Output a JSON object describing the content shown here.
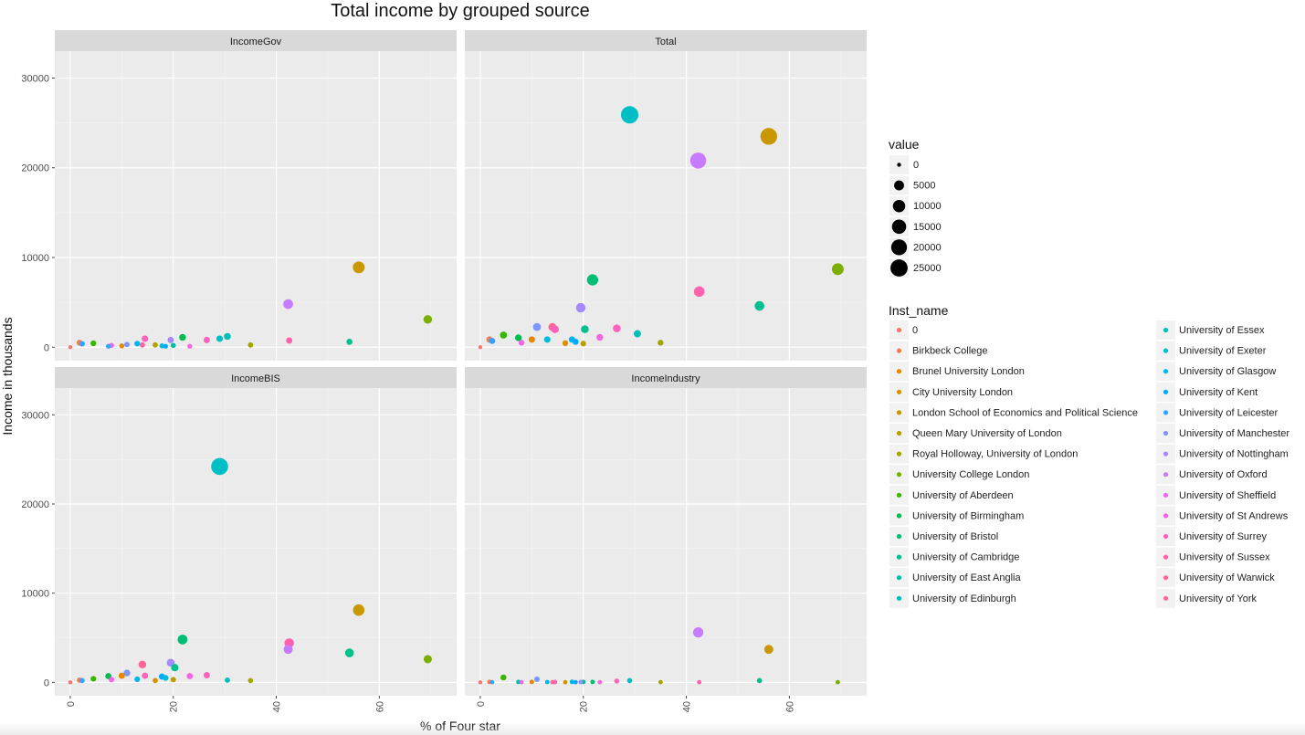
{
  "chart_data": {
    "type": "scatter",
    "title": "Total income by grouped source",
    "xlabel": "% of Four star",
    "ylabel": "Income in thousands",
    "xlim": [
      -3,
      75
    ],
    "ylim": [
      -1500,
      33000
    ],
    "x_ticks": [
      0,
      20,
      40,
      60
    ],
    "x_tick_labels": [
      "0",
      "20",
      "40",
      "60"
    ],
    "y_ticks": [
      0,
      10000,
      20000,
      30000
    ],
    "y_tick_labels": [
      "0",
      "10000",
      "20000",
      "30000"
    ],
    "grid": true,
    "facet_layout": "2x2",
    "size_legend": {
      "title": "value",
      "entries": [
        {
          "label": "0",
          "value": 0
        },
        {
          "label": "5000",
          "value": 5000
        },
        {
          "label": "10000",
          "value": 10000
        },
        {
          "label": "15000",
          "value": 15000
        },
        {
          "label": "20000",
          "value": 20000
        },
        {
          "label": "25000",
          "value": 25000
        }
      ]
    },
    "color_legend": {
      "title": "Inst_name",
      "placement": "right",
      "entries": [
        {
          "label": "0",
          "color": "#F8766D"
        },
        {
          "label": "Birkbeck College",
          "color": "#F07D51"
        },
        {
          "label": "Brunel University London",
          "color": "#E58700"
        },
        {
          "label": "City University London",
          "color": "#D89000"
        },
        {
          "label": "London School of Economics and Political Science",
          "color": "#C99800"
        },
        {
          "label": "Queen Mary University of London",
          "color": "#B79F00"
        },
        {
          "label": "Royal Holloway, University of London",
          "color": "#A3A500"
        },
        {
          "label": "University College London",
          "color": "#7CAE00"
        },
        {
          "label": "University of Aberdeen",
          "color": "#39B600"
        },
        {
          "label": "University of Birmingham",
          "color": "#00BB4E"
        },
        {
          "label": "University of Bristol",
          "color": "#00BF74"
        },
        {
          "label": "University of Cambridge",
          "color": "#00C08B"
        },
        {
          "label": "University of East Anglia",
          "color": "#00C1A3"
        },
        {
          "label": "University of Edinburgh",
          "color": "#00BFB7"
        },
        {
          "label": "University of Essex",
          "color": "#00BFC4"
        },
        {
          "label": "University of Exeter",
          "color": "#00BCD8"
        },
        {
          "label": "University of Glasgow",
          "color": "#00B4EF"
        },
        {
          "label": "University of Kent",
          "color": "#00A9FF"
        },
        {
          "label": "University of Leicester",
          "color": "#35A2FF"
        },
        {
          "label": "University of Manchester",
          "color": "#7F96FF"
        },
        {
          "label": "University of Nottingham",
          "color": "#A58AFF"
        },
        {
          "label": "University of Oxford",
          "color": "#C77CFF"
        },
        {
          "label": "University of Sheffield",
          "color": "#E76BF3"
        },
        {
          "label": "University of St Andrews",
          "color": "#F564E3"
        },
        {
          "label": "University of Surrey",
          "color": "#FF62BC"
        },
        {
          "label": "University of Sussex",
          "color": "#FF61AC"
        },
        {
          "label": "University of Warwick",
          "color": "#FF6599"
        },
        {
          "label": "University of York",
          "color": "#FF6C91"
        }
      ]
    },
    "facets": [
      {
        "name": "IncomeGov",
        "points": [
          {
            "x": 0,
            "y": 0,
            "c": 0
          },
          {
            "x": 1.8,
            "y": 500,
            "c": 1
          },
          {
            "x": 2.3,
            "y": 380,
            "c": 18
          },
          {
            "x": 4.5,
            "y": 430,
            "c": 8
          },
          {
            "x": 7.4,
            "y": 100,
            "c": 18
          },
          {
            "x": 8,
            "y": 200,
            "c": 23
          },
          {
            "x": 10,
            "y": 150,
            "c": 2
          },
          {
            "x": 11,
            "y": 300,
            "c": 19
          },
          {
            "x": 13,
            "y": 400,
            "c": 16
          },
          {
            "x": 14,
            "y": 250,
            "c": 26
          },
          {
            "x": 14.5,
            "y": 950,
            "c": 24
          },
          {
            "x": 16.5,
            "y": 250,
            "c": 5
          },
          {
            "x": 17.8,
            "y": 150,
            "c": 15
          },
          {
            "x": 18.5,
            "y": 100,
            "c": 17
          },
          {
            "x": 19.5,
            "y": 800,
            "c": 20
          },
          {
            "x": 20,
            "y": 200,
            "c": 12
          },
          {
            "x": 21.8,
            "y": 1100,
            "c": 9
          },
          {
            "x": 23.2,
            "y": 100,
            "c": 23
          },
          {
            "x": 26.5,
            "y": 800,
            "c": 24
          },
          {
            "x": 29,
            "y": 950,
            "c": 14
          },
          {
            "x": 30.5,
            "y": 1200,
            "c": 13
          },
          {
            "x": 35,
            "y": 250,
            "c": 6
          },
          {
            "x": 42.3,
            "y": 4800,
            "c": 21
          },
          {
            "x": 42.5,
            "y": 750,
            "c": 25
          },
          {
            "x": 54.2,
            "y": 600,
            "c": 11
          },
          {
            "x": 56,
            "y": 8900,
            "c": 4
          },
          {
            "x": 69.4,
            "y": 3100,
            "c": 7
          }
        ]
      },
      {
        "name": "Total",
        "points": [
          {
            "x": 0,
            "y": 0,
            "c": 0
          },
          {
            "x": 1.8,
            "y": 850,
            "c": 1
          },
          {
            "x": 2.3,
            "y": 700,
            "c": 18
          },
          {
            "x": 4.5,
            "y": 1350,
            "c": 8
          },
          {
            "x": 7.4,
            "y": 1050,
            "c": 9
          },
          {
            "x": 8,
            "y": 500,
            "c": 23
          },
          {
            "x": 10,
            "y": 850,
            "c": 2
          },
          {
            "x": 11,
            "y": 2250,
            "c": 19
          },
          {
            "x": 13,
            "y": 850,
            "c": 15
          },
          {
            "x": 14,
            "y": 2250,
            "c": 26
          },
          {
            "x": 14.5,
            "y": 2000,
            "c": 24
          },
          {
            "x": 16.5,
            "y": 450,
            "c": 3
          },
          {
            "x": 17.8,
            "y": 850,
            "c": 16
          },
          {
            "x": 18.5,
            "y": 600,
            "c": 17
          },
          {
            "x": 19.5,
            "y": 4400,
            "c": 20
          },
          {
            "x": 20,
            "y": 400,
            "c": 5
          },
          {
            "x": 20.3,
            "y": 2000,
            "c": 11
          },
          {
            "x": 21.8,
            "y": 7500,
            "c": 10
          },
          {
            "x": 23.2,
            "y": 1100,
            "c": 23
          },
          {
            "x": 26.5,
            "y": 2100,
            "c": 24
          },
          {
            "x": 29,
            "y": 25900,
            "c": 14
          },
          {
            "x": 30.5,
            "y": 1500,
            "c": 13
          },
          {
            "x": 35,
            "y": 500,
            "c": 6
          },
          {
            "x": 42.3,
            "y": 20800,
            "c": 21
          },
          {
            "x": 42.5,
            "y": 6200,
            "c": 25
          },
          {
            "x": 54.2,
            "y": 4600,
            "c": 11
          },
          {
            "x": 56,
            "y": 23500,
            "c": 4
          },
          {
            "x": 69.4,
            "y": 8700,
            "c": 7
          }
        ]
      },
      {
        "name": "IncomeBIS",
        "points": [
          {
            "x": 0,
            "y": 0,
            "c": 0
          },
          {
            "x": 1.8,
            "y": 250,
            "c": 1
          },
          {
            "x": 2.3,
            "y": 200,
            "c": 18
          },
          {
            "x": 4.5,
            "y": 400,
            "c": 8
          },
          {
            "x": 7.4,
            "y": 700,
            "c": 9
          },
          {
            "x": 8,
            "y": 300,
            "c": 23
          },
          {
            "x": 10,
            "y": 750,
            "c": 2
          },
          {
            "x": 11,
            "y": 1050,
            "c": 19
          },
          {
            "x": 13,
            "y": 350,
            "c": 16
          },
          {
            "x": 14,
            "y": 2000,
            "c": 26
          },
          {
            "x": 14.5,
            "y": 750,
            "c": 24
          },
          {
            "x": 16.5,
            "y": 200,
            "c": 3
          },
          {
            "x": 17.8,
            "y": 650,
            "c": 17
          },
          {
            "x": 18.5,
            "y": 500,
            "c": 15
          },
          {
            "x": 19.5,
            "y": 2200,
            "c": 20
          },
          {
            "x": 20,
            "y": 300,
            "c": 5
          },
          {
            "x": 20.3,
            "y": 1650,
            "c": 11
          },
          {
            "x": 21.8,
            "y": 4800,
            "c": 10
          },
          {
            "x": 23.2,
            "y": 700,
            "c": 23
          },
          {
            "x": 26.5,
            "y": 800,
            "c": 24
          },
          {
            "x": 29,
            "y": 24200,
            "c": 14
          },
          {
            "x": 30.5,
            "y": 250,
            "c": 13
          },
          {
            "x": 35,
            "y": 200,
            "c": 6
          },
          {
            "x": 42.3,
            "y": 3700,
            "c": 21
          },
          {
            "x": 42.5,
            "y": 4400,
            "c": 25
          },
          {
            "x": 54.2,
            "y": 3300,
            "c": 11
          },
          {
            "x": 56,
            "y": 8100,
            "c": 4
          },
          {
            "x": 69.4,
            "y": 2600,
            "c": 7
          }
        ]
      },
      {
        "name": "IncomeIndustry",
        "points": [
          {
            "x": 0,
            "y": 0,
            "c": 0
          },
          {
            "x": 1.8,
            "y": 50,
            "c": 1
          },
          {
            "x": 2.3,
            "y": 20,
            "c": 18
          },
          {
            "x": 4.5,
            "y": 550,
            "c": 8
          },
          {
            "x": 7.4,
            "y": 50,
            "c": 12
          },
          {
            "x": 8,
            "y": 20,
            "c": 23
          },
          {
            "x": 10,
            "y": 50,
            "c": 2
          },
          {
            "x": 11,
            "y": 350,
            "c": 19
          },
          {
            "x": 13,
            "y": 30,
            "c": 16
          },
          {
            "x": 14,
            "y": 20,
            "c": 26
          },
          {
            "x": 14.5,
            "y": 40,
            "c": 24
          },
          {
            "x": 16.5,
            "y": 20,
            "c": 3
          },
          {
            "x": 17.8,
            "y": 60,
            "c": 15
          },
          {
            "x": 18.5,
            "y": 20,
            "c": 17
          },
          {
            "x": 19.5,
            "y": 40,
            "c": 20
          },
          {
            "x": 20,
            "y": 50,
            "c": 11
          },
          {
            "x": 21.8,
            "y": 50,
            "c": 10
          },
          {
            "x": 23.2,
            "y": 20,
            "c": 23
          },
          {
            "x": 26.5,
            "y": 150,
            "c": 24
          },
          {
            "x": 29,
            "y": 200,
            "c": 14
          },
          {
            "x": 35,
            "y": 20,
            "c": 6
          },
          {
            "x": 42.3,
            "y": 5600,
            "c": 21
          },
          {
            "x": 42.5,
            "y": 20,
            "c": 25
          },
          {
            "x": 54.2,
            "y": 200,
            "c": 11
          },
          {
            "x": 56,
            "y": 3700,
            "c": 4
          },
          {
            "x": 69.4,
            "y": 20,
            "c": 7
          }
        ]
      }
    ]
  }
}
